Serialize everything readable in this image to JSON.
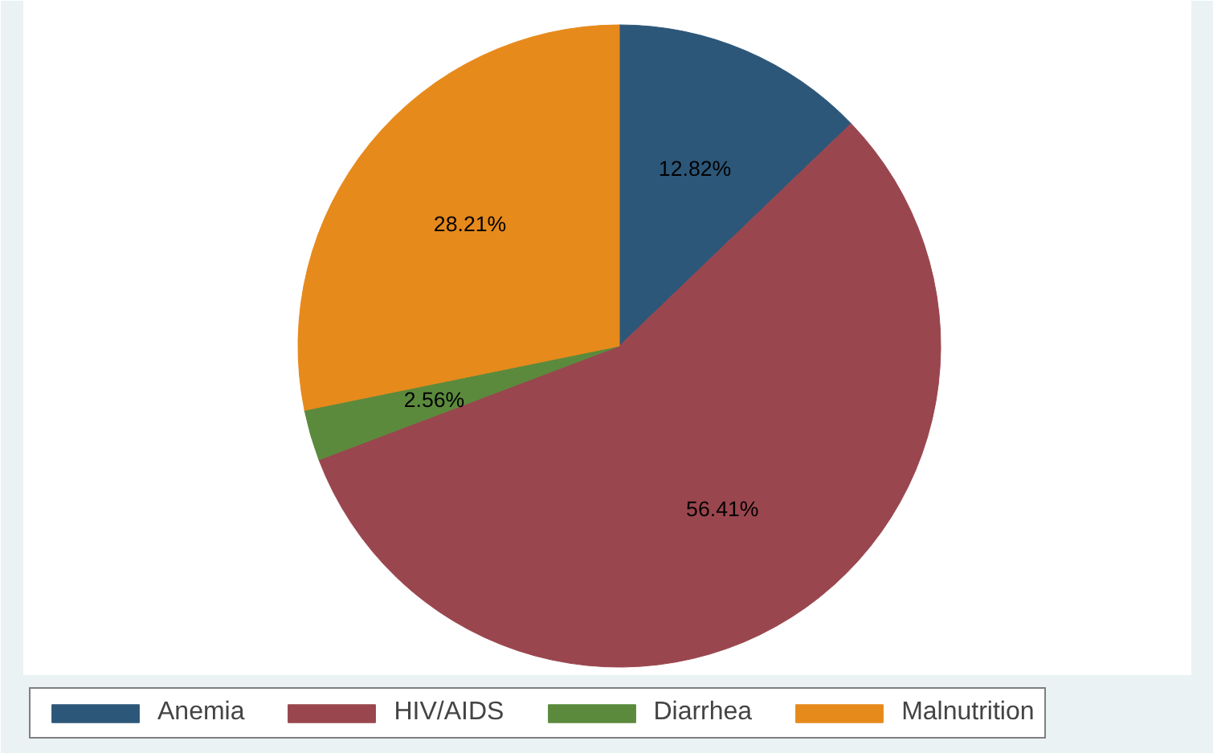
{
  "chart_data": {
    "type": "pie",
    "categories": [
      "Anemia",
      "HIV/AIDS",
      "Diarrhea",
      "Malnutrition"
    ],
    "values": [
      12.82,
      56.41,
      2.56,
      28.21
    ],
    "colors": [
      "#2d5779",
      "#9a464e",
      "#5b8a3d",
      "#e68a1c"
    ],
    "value_labels": [
      "12.82%",
      "56.41%",
      "2.56%",
      "28.21%"
    ],
    "legend": "bottom"
  }
}
